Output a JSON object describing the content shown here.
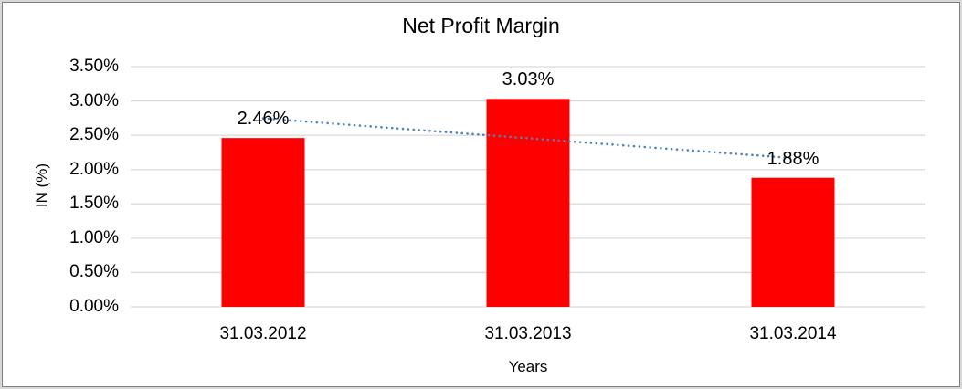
{
  "chart_data": {
    "type": "bar",
    "title": "Net Profit Margin",
    "xlabel": "Years",
    "ylabel": "IN (%)",
    "categories": [
      "31.03.2012",
      "31.03.2013",
      "31.03.2014"
    ],
    "values": [
      2.46,
      3.03,
      1.88
    ],
    "value_labels": [
      "2.46%",
      "3.03%",
      "1.88%"
    ],
    "y_ticks": [
      "0.00%",
      "0.50%",
      "1.00%",
      "1.50%",
      "2.00%",
      "2.50%",
      "3.00%",
      "3.50%"
    ],
    "ylim": [
      0,
      3.5
    ],
    "y_step": 0.5,
    "grid": true,
    "legend": false,
    "bar_color": "#ff0000",
    "trendline": {
      "type": "linear",
      "style": "dotted",
      "color": "#4f81bd"
    },
    "gridline_color": "#d9d9d9",
    "text_color": "#000000",
    "frame_outer_color": "#d8d8d8",
    "frame_inner_color": "#7f7f7f"
  }
}
